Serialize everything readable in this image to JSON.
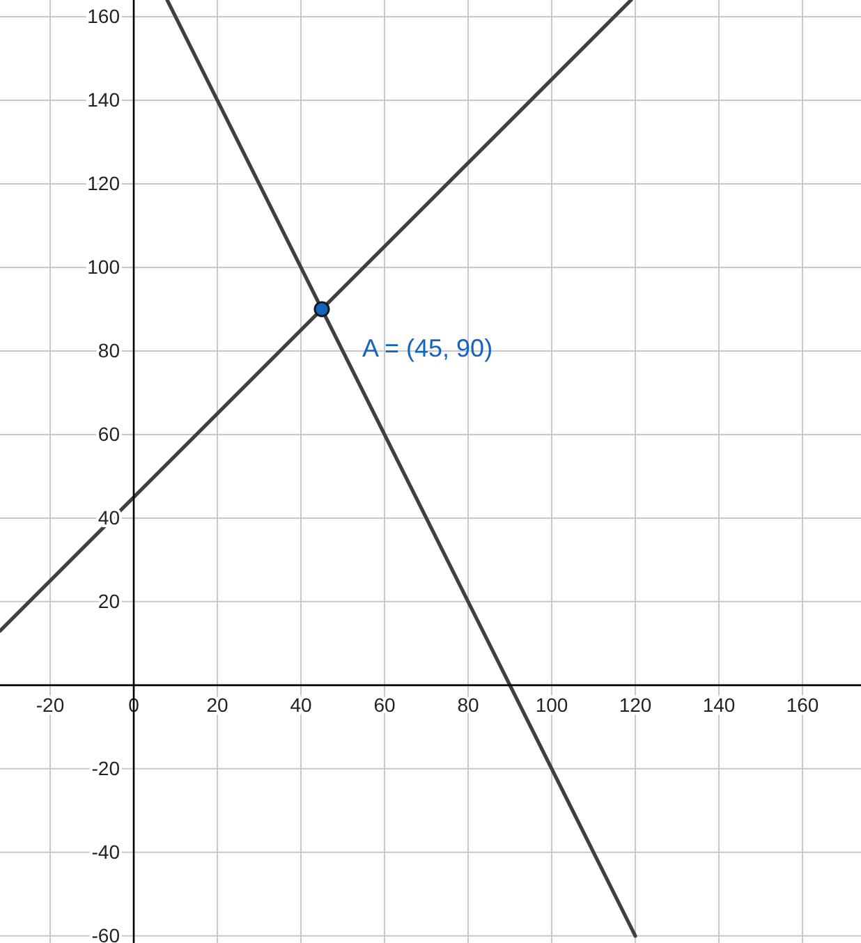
{
  "chart_data": {
    "type": "line",
    "xlim": [
      -32,
      174
    ],
    "ylim": [
      -61.7,
      164
    ],
    "xticks": [
      -20,
      0,
      20,
      40,
      60,
      80,
      100,
      120,
      140,
      160
    ],
    "yticks": [
      -60,
      -40,
      -20,
      {
        "value": 0,
        "label": null
      },
      20,
      40,
      60,
      80,
      100,
      120,
      140,
      160
    ],
    "grid": true,
    "series": [
      {
        "color": "#404040",
        "x": [
          -32,
          119
        ],
        "values": [
          13,
          164
        ]
      },
      {
        "color": "#404040",
        "x": [
          8,
          120
        ],
        "values": [
          164,
          -60
        ]
      },
      {
        "type": "scatter",
        "color": "#1565c0",
        "x": [
          45
        ],
        "values": [
          90
        ]
      }
    ],
    "annotations": [
      {
        "text": "A = (45, 90)",
        "x": 45,
        "y": 90
      }
    ]
  }
}
